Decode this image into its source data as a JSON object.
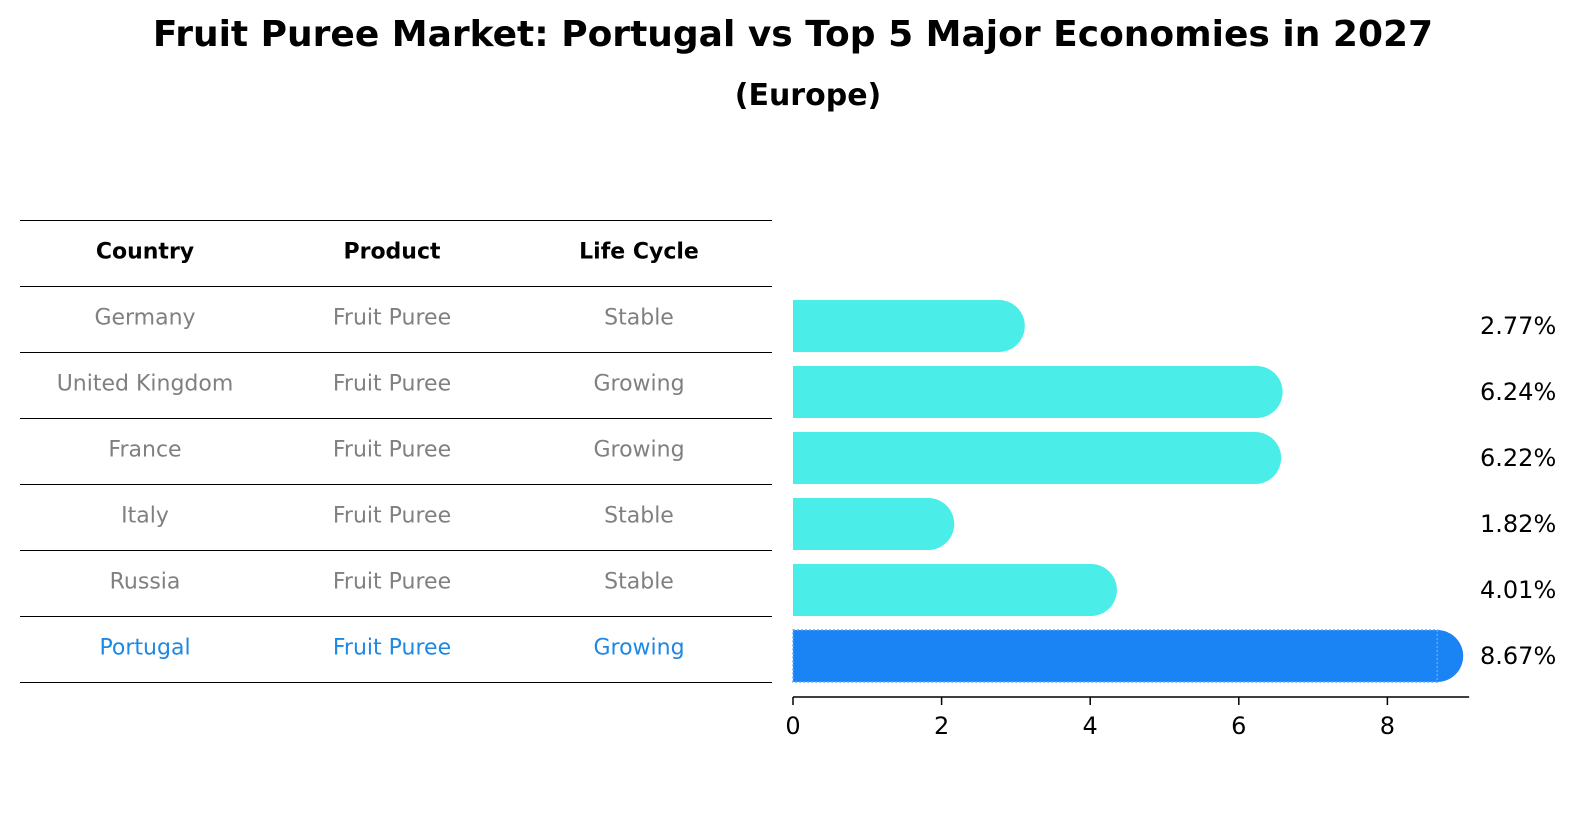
{
  "title": "Fruit Puree Market: Portugal vs Top 5 Major Economies in 2027",
  "subtitle": "(Europe)",
  "table": {
    "headers": [
      "Country",
      "Product",
      "Life Cycle"
    ],
    "rows": [
      {
        "country": "Germany",
        "product": "Fruit Puree",
        "life_cycle": "Stable",
        "highlight": false
      },
      {
        "country": "United Kingdom",
        "product": "Fruit Puree",
        "life_cycle": "Growing",
        "highlight": false
      },
      {
        "country": "France",
        "product": "Fruit Puree",
        "life_cycle": "Growing",
        "highlight": false
      },
      {
        "country": "Italy",
        "product": "Fruit Puree",
        "life_cycle": "Stable",
        "highlight": false
      },
      {
        "country": "Russia",
        "product": "Fruit Puree",
        "life_cycle": "Stable",
        "highlight": false
      },
      {
        "country": "Portugal",
        "product": "Fruit Puree",
        "life_cycle": "Growing",
        "highlight": true
      }
    ]
  },
  "colors": {
    "bar": "#4aede8",
    "highlight_bar": "#1a84f5",
    "highlight_text": "#1e88e5",
    "muted_text": "#808080"
  },
  "chart_data": {
    "type": "bar",
    "orientation": "horizontal",
    "categories": [
      "Germany",
      "United Kingdom",
      "France",
      "Italy",
      "Russia",
      "Portugal"
    ],
    "values": [
      2.77,
      6.24,
      6.22,
      1.82,
      4.01,
      8.67
    ],
    "value_labels": [
      "2.77%",
      "6.24%",
      "6.22%",
      "1.82%",
      "4.01%",
      "8.67%"
    ],
    "highlight": "Portugal",
    "xlim": [
      0,
      9.1
    ],
    "xticks": [
      0,
      2,
      4,
      6,
      8
    ],
    "xlabel": "",
    "ylabel": "",
    "grid": false,
    "legend": "none"
  }
}
